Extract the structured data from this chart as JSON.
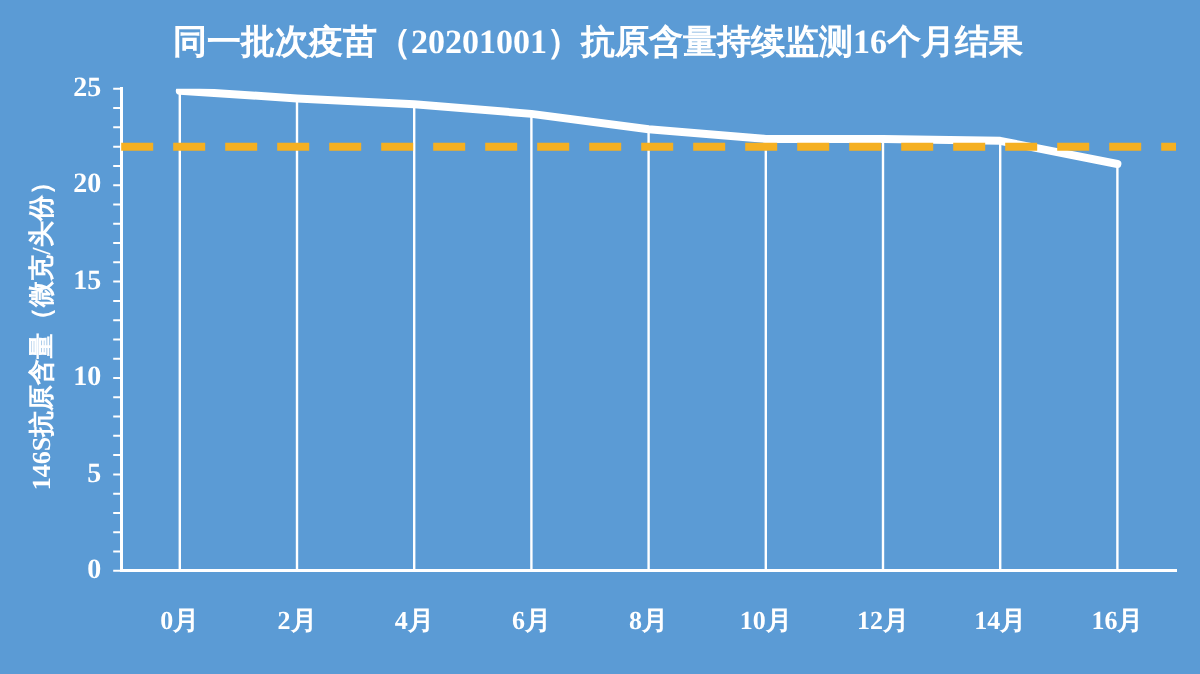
{
  "chart_data": {
    "type": "line",
    "title": "同一批次疫苗（20201001）抗原含量持续监测16个月结果",
    "ylabel": "146S抗原含量（微克/头份）",
    "categories": [
      "0月",
      "2月",
      "4月",
      "6月",
      "8月",
      "10月",
      "12月",
      "14月",
      "16月"
    ],
    "series": [
      {
        "color": "#ffffff",
        "values": [
          24.9,
          24.5,
          24.2,
          23.7,
          22.9,
          22.4,
          22.4,
          22.3,
          21.1
        ]
      }
    ],
    "ylim": [
      0,
      25
    ],
    "yticks": [
      0,
      5,
      10,
      15,
      20,
      25
    ],
    "grid": "x",
    "legend": false,
    "marker": "none",
    "line_style": "solid",
    "ref_lines": [
      {
        "axis": "y",
        "value": 22,
        "color": "#f5b022",
        "line_style": "dashed"
      }
    ]
  }
}
